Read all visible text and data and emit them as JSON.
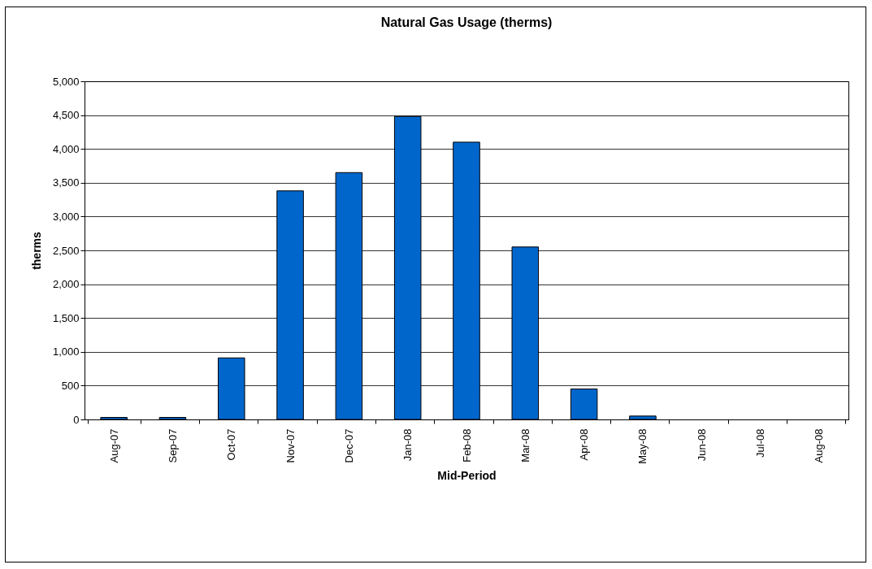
{
  "chart_data": {
    "type": "bar",
    "title": "Natural Gas Usage (therms)",
    "xlabel": "Mid-Period",
    "ylabel": "therms",
    "categories": [
      "Aug-07",
      "Sep-07",
      "Oct-07",
      "Nov-07",
      "Dec-07",
      "Jan-08",
      "Feb-08",
      "Mar-08",
      "Apr-08",
      "May-08",
      "Jun-08",
      "Jul-08",
      "Aug-08"
    ],
    "values": [
      30,
      30,
      910,
      3380,
      3650,
      4480,
      4100,
      2550,
      450,
      50,
      0,
      0,
      0
    ],
    "color": "#0066cc",
    "ylim": [
      0,
      5000
    ],
    "yticks": [
      {
        "value": 0,
        "label": "0"
      },
      {
        "value": 500,
        "label": "500"
      },
      {
        "value": 1000,
        "label": "1,000"
      },
      {
        "value": 1500,
        "label": "1,500"
      },
      {
        "value": 2000,
        "label": "2,000"
      },
      {
        "value": 2500,
        "label": "2,500"
      },
      {
        "value": 3000,
        "label": "3,000"
      },
      {
        "value": 3500,
        "label": "3,500"
      },
      {
        "value": 4000,
        "label": "4,000"
      },
      {
        "value": 4500,
        "label": "4,500"
      },
      {
        "value": 5000,
        "label": "5,000"
      }
    ],
    "grid": "y"
  }
}
